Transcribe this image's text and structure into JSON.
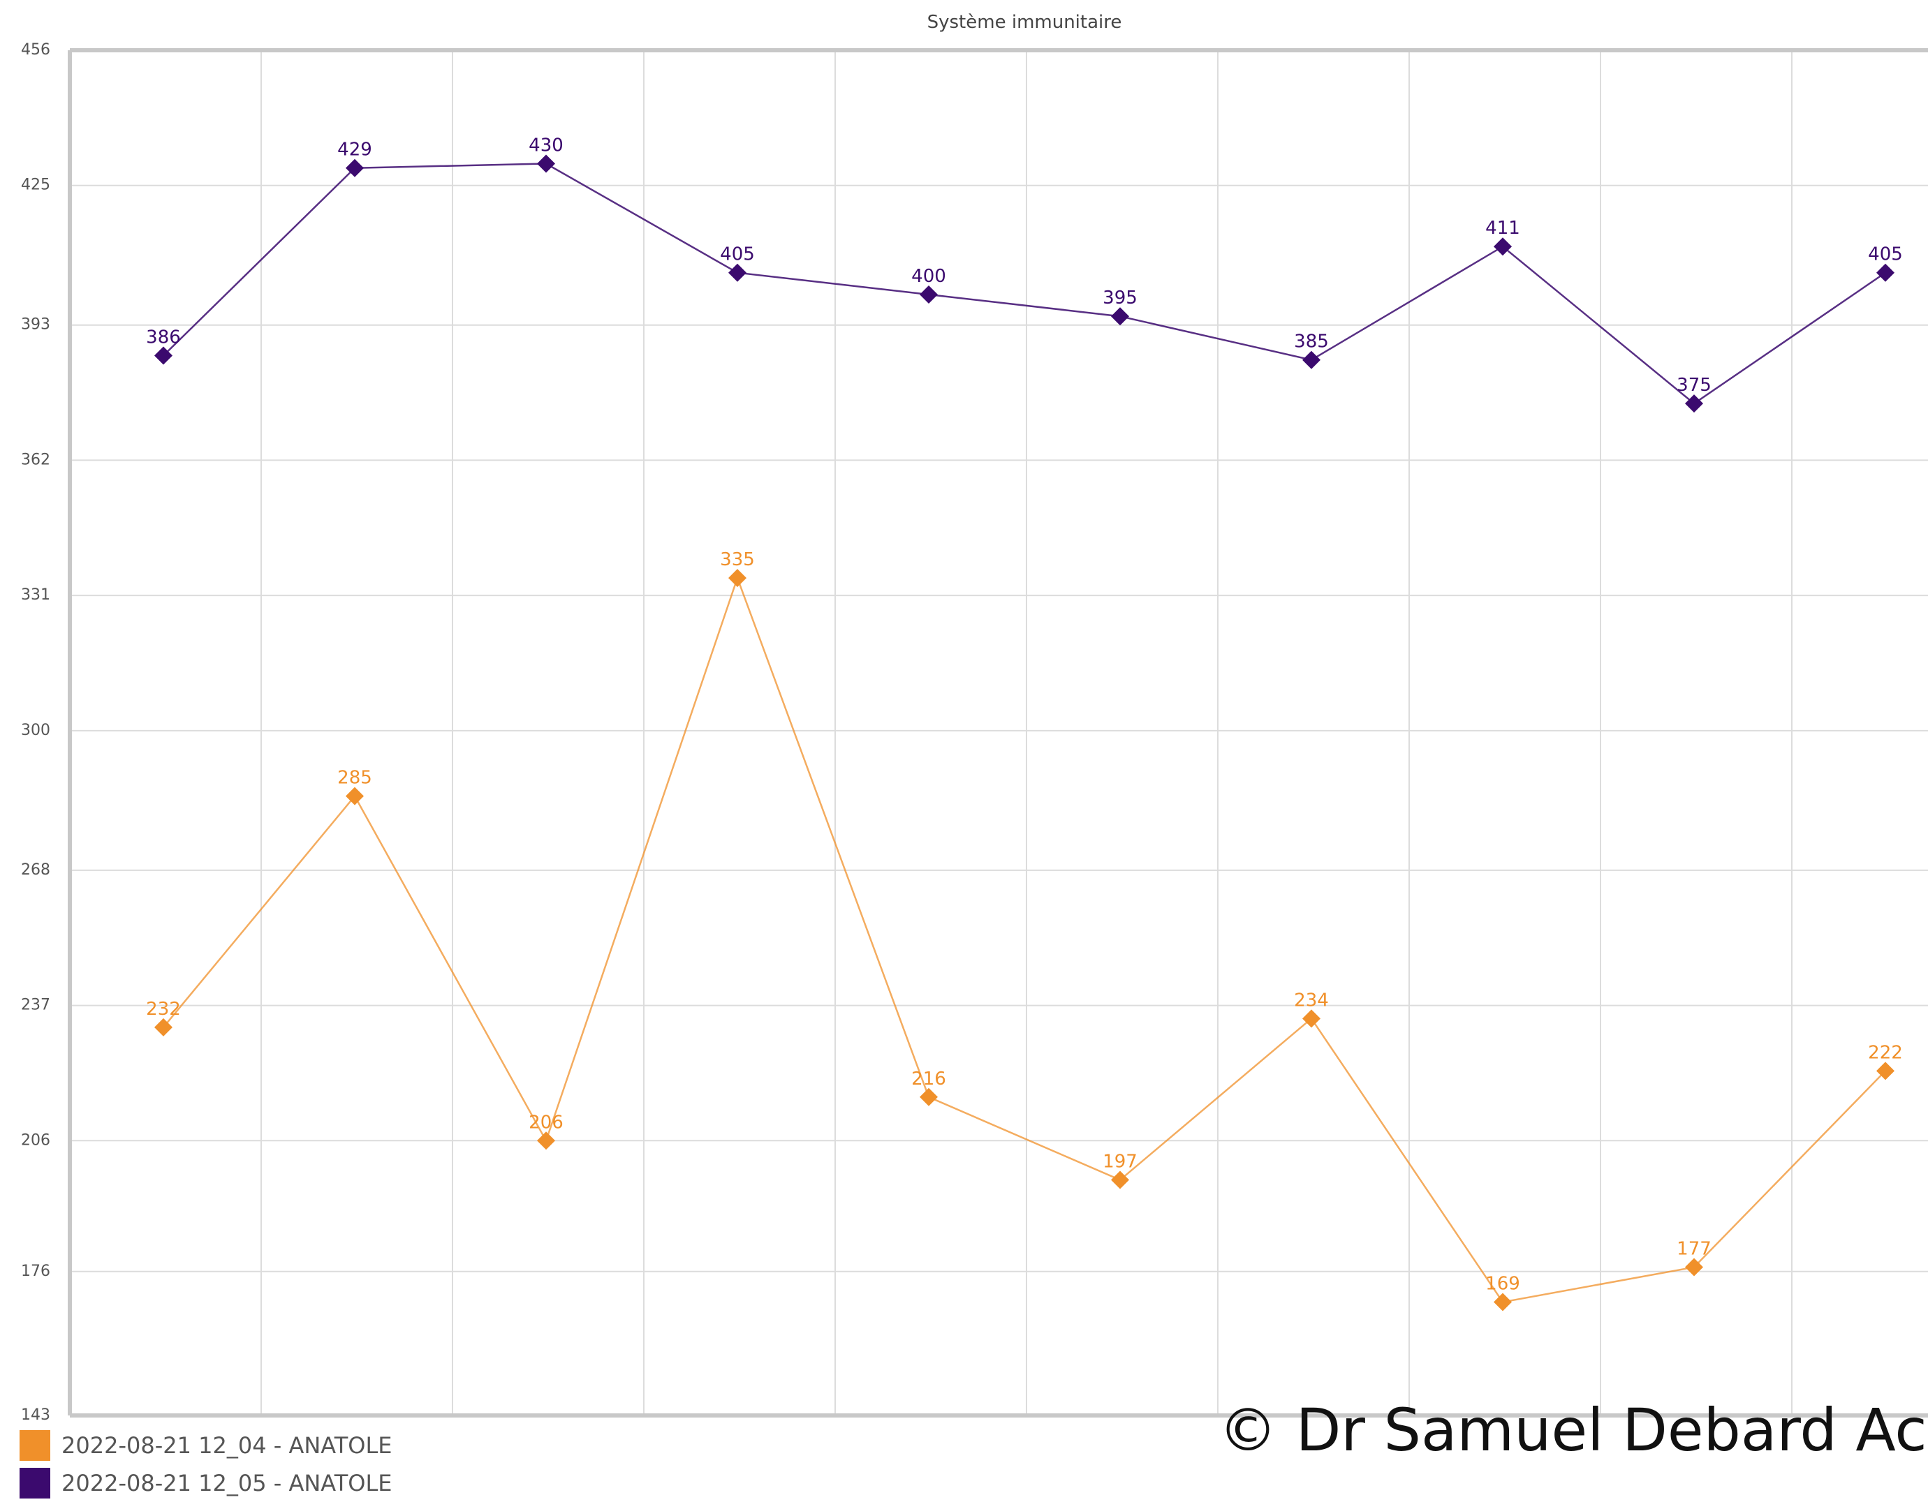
{
  "chart_data": {
    "type": "line",
    "title": "Système immunitaire",
    "xlabel": "",
    "ylabel": "",
    "ylim": [
      143,
      456
    ],
    "yticks": [
      "143",
      "176",
      "206",
      "237",
      "268",
      "300",
      "331",
      "362",
      "393",
      "425",
      "456"
    ],
    "grid": true,
    "legend_position": "bottom-left",
    "x": [
      1,
      2,
      3,
      4,
      5,
      6,
      7,
      8,
      9,
      10
    ],
    "series": [
      {
        "name": "2022-08-21 12_04 - ANATOLE",
        "color": "#f0902a",
        "values": [
          232,
          285,
          206,
          335,
          216,
          197,
          234,
          169,
          177,
          222
        ]
      },
      {
        "name": "2022-08-21 12_05 - ANATOLE",
        "color": "#3b0a6e",
        "values": [
          386,
          429,
          430,
          405,
          400,
          395,
          385,
          411,
          375,
          405
        ]
      }
    ]
  },
  "watermark": "© Dr Samuel Debard Ac"
}
